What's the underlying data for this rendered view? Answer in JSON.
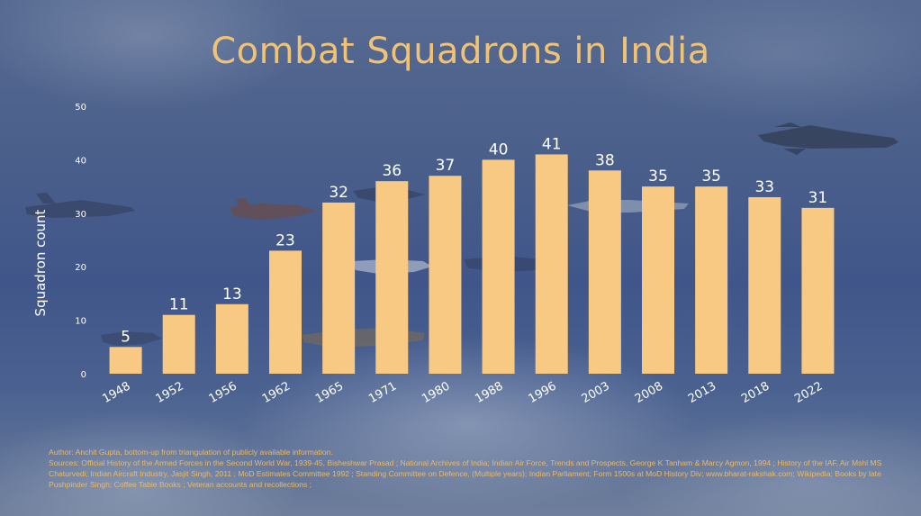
{
  "title": "Combat Squadrons in India",
  "author": "Author: Anchit Gupta, bottom-up from triangulation of publicly available information.",
  "sources": "Sources: Official History of the Armed Forces in the Second World War, 1939-45, Bisheshwar Prasad ; National Archives of India; Indian Air Force, Trends and Prospects, George K Tanham & Marcy Agmon, 1994 ; History of the IAF, Air Mshl MS Chaturvedi; Indian Aircraft Industry, Jasjit Singh, 2011 ; MoD Estimates Committee 1992 ; Standing Committee on Defence, (Multiple years); Indian Parliament; Form 1500s at MoD History Div; www.bharat-rakshak.com; Wikipedia; Books by late Pushpinder Singh; Coffee Table Books ; Veteran accounts and recollections ;",
  "colors": {
    "bar": "#f7c982",
    "title": "#f0c275",
    "axis_text": "#ffffff",
    "source_text": "#e9b96a"
  },
  "chart_data": {
    "type": "bar",
    "title": "Combat Squadrons in India",
    "xlabel": "",
    "ylabel": "Squadron count",
    "categories": [
      "1948",
      "1952",
      "1956",
      "1962",
      "1965",
      "1971",
      "1980",
      "1988",
      "1996",
      "2003",
      "2008",
      "2013",
      "2018",
      "2022"
    ],
    "values": [
      5,
      11,
      13,
      23,
      32,
      36,
      37,
      40,
      41,
      38,
      35,
      35,
      33,
      31
    ],
    "data_labels": [
      "5",
      "11",
      "13",
      "23",
      "32",
      "36",
      "37",
      "40",
      "41",
      "38",
      "35",
      "35",
      "33",
      "31"
    ],
    "yticks": [
      0,
      10,
      20,
      30,
      40,
      50
    ],
    "ytick_labels": [
      "0",
      "10",
      "20",
      "30",
      "40",
      "50"
    ],
    "ylim": [
      0,
      50
    ],
    "grid": false,
    "legend": "none"
  }
}
